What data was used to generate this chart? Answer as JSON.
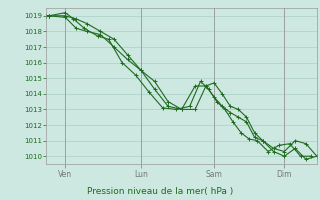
{
  "xlabel": "Pression niveau de la mer( hPa )",
  "bg_color": "#cce8e0",
  "grid_color": "#aacfc5",
  "line_color": "#1e6b1e",
  "ylim": [
    1009.5,
    1019.5
  ],
  "xlim": [
    0.0,
    1.0
  ],
  "yticks": [
    1010,
    1011,
    1012,
    1013,
    1014,
    1015,
    1016,
    1017,
    1018,
    1019
  ],
  "day_labels": [
    "Ven",
    "Lun",
    "Sam",
    "Dim"
  ],
  "day_positions": [
    0.07,
    0.35,
    0.62,
    0.88
  ],
  "line1_x": [
    0.0,
    0.01,
    0.07,
    0.11,
    0.15,
    0.2,
    0.25,
    0.3,
    0.35,
    0.4,
    0.45,
    0.5,
    0.55,
    0.59,
    0.62,
    0.65,
    0.68,
    0.71,
    0.74,
    0.77,
    0.8,
    0.84,
    0.88,
    0.92,
    0.96,
    1.0
  ],
  "line1_y": [
    1019.0,
    1019.0,
    1019.0,
    1018.8,
    1018.5,
    1018.0,
    1017.5,
    1016.5,
    1015.5,
    1014.8,
    1013.5,
    1013.0,
    1013.0,
    1014.5,
    1014.7,
    1014.0,
    1013.2,
    1013.0,
    1012.5,
    1011.5,
    1011.0,
    1010.5,
    1010.3,
    1011.0,
    1010.8,
    1010.0
  ],
  "line2_x": [
    0.0,
    0.01,
    0.07,
    0.11,
    0.15,
    0.2,
    0.25,
    0.3,
    0.35,
    0.4,
    0.45,
    0.5,
    0.55,
    0.59,
    0.62,
    0.65,
    0.68,
    0.71,
    0.74,
    0.77,
    0.8,
    0.84,
    0.88,
    0.92,
    0.96,
    1.0
  ],
  "line2_y": [
    1019.0,
    1019.0,
    1018.9,
    1018.2,
    1018.0,
    1017.8,
    1017.0,
    1016.2,
    1015.5,
    1014.3,
    1013.2,
    1013.0,
    1014.5,
    1014.5,
    1013.8,
    1013.2,
    1012.8,
    1012.5,
    1012.2,
    1011.2,
    1011.0,
    1010.3,
    1010.0,
    1010.5,
    1009.8,
    1010.0
  ],
  "line3_x": [
    0.0,
    0.01,
    0.07,
    0.1,
    0.14,
    0.19,
    0.23,
    0.28,
    0.33,
    0.38,
    0.43,
    0.48,
    0.53,
    0.57,
    0.6,
    0.63,
    0.66,
    0.69,
    0.72,
    0.75,
    0.78,
    0.82,
    0.86,
    0.9,
    0.94,
    0.98
  ],
  "line3_y": [
    1019.0,
    1019.0,
    1019.2,
    1018.8,
    1018.2,
    1017.7,
    1017.5,
    1016.0,
    1015.2,
    1014.1,
    1013.1,
    1013.0,
    1013.2,
    1014.8,
    1014.3,
    1013.5,
    1013.0,
    1012.2,
    1011.5,
    1011.1,
    1011.0,
    1010.3,
    1010.7,
    1010.8,
    1010.0,
    1010.0
  ]
}
